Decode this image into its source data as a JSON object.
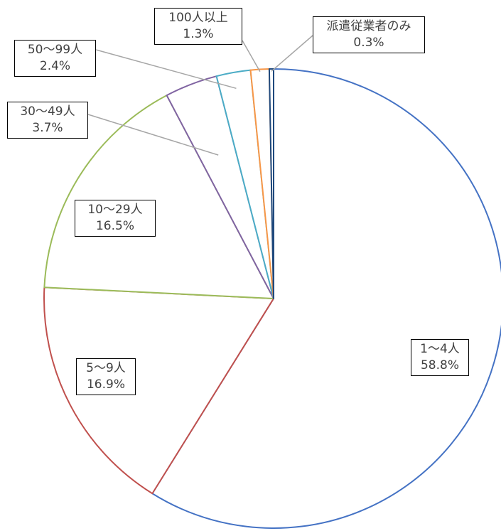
{
  "chart_data": {
    "type": "pie",
    "title": "",
    "start_angle_deg": 0,
    "direction": "clockwise",
    "slices": [
      {
        "label": "1〜4人",
        "value": 58.8,
        "value_text": "58.8%",
        "color": "#4472C4"
      },
      {
        "label": "5〜9人",
        "value": 16.9,
        "value_text": "16.9%",
        "color": "#C0504D"
      },
      {
        "label": "10〜29人",
        "value": 16.5,
        "value_text": "16.5%",
        "color": "#9BBB59"
      },
      {
        "label": "30〜49人",
        "value": 3.7,
        "value_text": "3.7%",
        "color": "#8064A2"
      },
      {
        "label": "50〜99人",
        "value": 2.4,
        "value_text": "2.4%",
        "color": "#4BACC6"
      },
      {
        "label": "100人以上",
        "value": 1.3,
        "value_text": "1.3%",
        "color": "#F79646"
      },
      {
        "label": "派遣従業者のみ",
        "value": 0.3,
        "value_text": "0.3%",
        "color": "#1F497D"
      }
    ],
    "slice_fill": "#ffffff",
    "leader_line_color": "#A6A6A6"
  }
}
